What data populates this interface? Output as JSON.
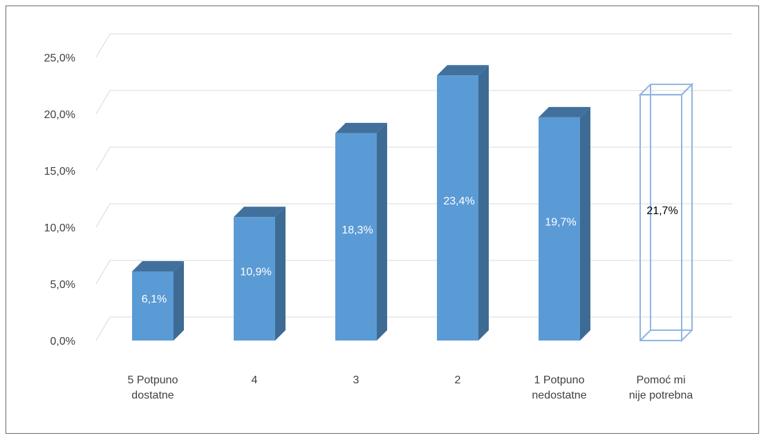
{
  "chart_data": {
    "type": "bar",
    "style": "3d-column",
    "title": "",
    "xlabel": "",
    "ylabel": "",
    "categories": [
      [
        "5 Potpuno",
        "dostatne"
      ],
      [
        "4"
      ],
      [
        "3"
      ],
      [
        "2"
      ],
      [
        "1 Potpuno",
        "nedostatne"
      ],
      [
        "Pomoć mi",
        "nije potrebna"
      ]
    ],
    "values": [
      6.1,
      10.9,
      18.3,
      23.4,
      19.7,
      21.7
    ],
    "data_labels": [
      "6,1%",
      "10,9%",
      "18,3%",
      "23,4%",
      "19,7%",
      "21,7%"
    ],
    "y_ticks": [
      "0,0%",
      "5,0%",
      "10,0%",
      "15,0%",
      "20,0%",
      "25,0%"
    ],
    "y_tick_values": [
      0,
      5,
      10,
      15,
      20,
      25
    ],
    "ylim": [
      0,
      25
    ],
    "grid": true,
    "legend": "none",
    "bar_styles": [
      "filled",
      "filled",
      "filled",
      "filled",
      "filled",
      "outline"
    ],
    "colors": {
      "bar_front": "#5b9bd5",
      "bar_side": "#3e6b94",
      "bar_top": "#41709d",
      "outline": "#8fb4e3",
      "grid": "#d9d9d9",
      "label_on_bar": "#ffffff",
      "label_on_outline": "#000000",
      "axis_text": "#404040"
    }
  }
}
